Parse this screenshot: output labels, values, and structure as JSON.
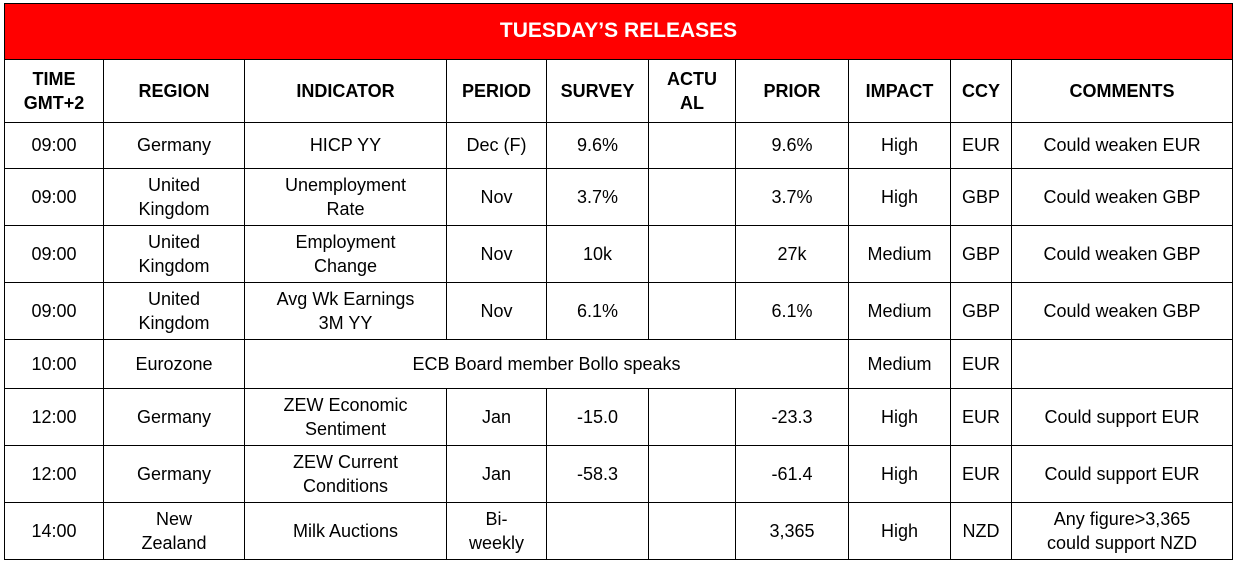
{
  "title": "TUESDAY’S RELEASES",
  "columns": {
    "time": [
      "TIME",
      "GMT+2"
    ],
    "region": "REGION",
    "indicator": "INDICATOR",
    "period": "PERIOD",
    "survey": "SURVEY",
    "actual": [
      "ACTU",
      "AL"
    ],
    "prior": "PRIOR",
    "impact": "IMPACT",
    "ccy": "CCY",
    "comments": "COMMENTS"
  },
  "rows": [
    {
      "time": "09:00",
      "region": [
        "Germany"
      ],
      "indicator": [
        "HICP YY"
      ],
      "period": [
        "Dec (F)"
      ],
      "survey": "9.6%",
      "actual": "",
      "prior": "9.6%",
      "impact": "High",
      "ccy": "EUR",
      "comments": [
        "Could weaken EUR"
      ]
    },
    {
      "time": "09:00",
      "region": [
        "United",
        "Kingdom"
      ],
      "indicator": [
        "Unemployment",
        "Rate"
      ],
      "period": [
        "Nov"
      ],
      "survey": "3.7%",
      "actual": "",
      "prior": "3.7%",
      "impact": "High",
      "ccy": "GBP",
      "comments": [
        "Could weaken GBP"
      ]
    },
    {
      "time": "09:00",
      "region": [
        "United",
        "Kingdom"
      ],
      "indicator": [
        "Employment",
        "Change"
      ],
      "period": [
        "Nov"
      ],
      "survey": "10k",
      "actual": "",
      "prior": "27k",
      "impact": "Medium",
      "ccy": "GBP",
      "comments": [
        "Could weaken GBP"
      ]
    },
    {
      "time": "09:00",
      "region": [
        "United",
        "Kingdom"
      ],
      "indicator": [
        "Avg Wk Earnings",
        "3M YY"
      ],
      "period": [
        "Nov"
      ],
      "survey": "6.1%",
      "actual": "",
      "prior": "6.1%",
      "impact": "Medium",
      "ccy": "GBP",
      "comments": [
        "Could weaken GBP"
      ]
    },
    {
      "time": "10:00",
      "region": [
        "Eurozone"
      ],
      "merged": "ECB Board member Bollo speaks",
      "impact": "Medium",
      "ccy": "EUR",
      "comments": [
        ""
      ]
    },
    {
      "time": "12:00",
      "region": [
        "Germany"
      ],
      "indicator": [
        "ZEW Economic",
        "Sentiment"
      ],
      "period": [
        "Jan"
      ],
      "survey": "-15.0",
      "actual": "",
      "prior": "-23.3",
      "impact": "High",
      "ccy": "EUR",
      "comments": [
        "Could support EUR"
      ]
    },
    {
      "time": "12:00",
      "region": [
        "Germany"
      ],
      "indicator": [
        "ZEW Current",
        "Conditions"
      ],
      "period": [
        "Jan"
      ],
      "survey": "-58.3",
      "actual": "",
      "prior": "-61.4",
      "impact": "High",
      "ccy": "EUR",
      "comments": [
        "Could support EUR"
      ]
    },
    {
      "time": "14:00",
      "region": [
        "New",
        "Zealand"
      ],
      "indicator": [
        "Milk Auctions"
      ],
      "period": [
        "Bi-",
        "weekly"
      ],
      "survey": "",
      "actual": "",
      "prior": "3,365",
      "impact": "High",
      "ccy": "NZD",
      "comments": [
        "Any figure>3,365",
        "could support NZD"
      ]
    }
  ]
}
